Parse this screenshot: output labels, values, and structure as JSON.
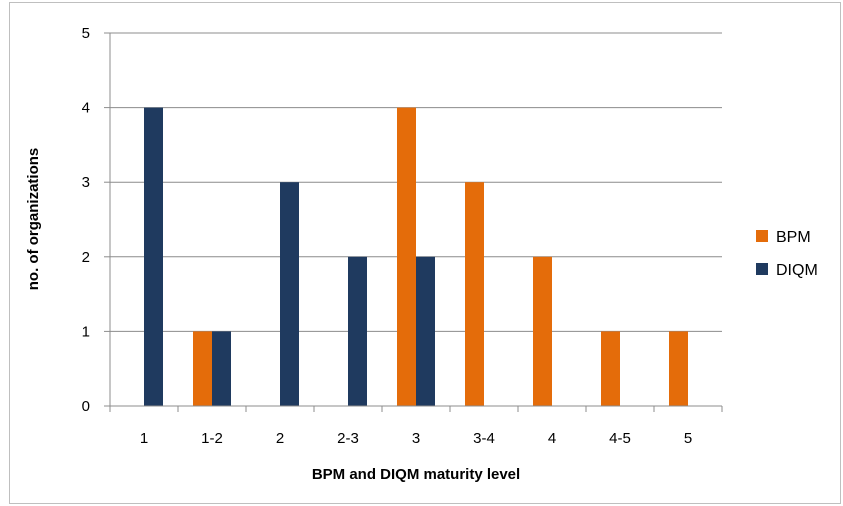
{
  "chart_data": {
    "type": "bar",
    "title": "",
    "xlabel": "BPM and DIQM maturity level",
    "ylabel": "no. of organizations",
    "categories": [
      "1",
      "1-2",
      "2",
      "2-3",
      "3",
      "3-4",
      "4",
      "4-5",
      "5"
    ],
    "series": [
      {
        "name": "BPM",
        "color": "#e46c0a",
        "values": [
          0,
          1,
          0,
          0,
          4,
          3,
          2,
          1,
          1
        ]
      },
      {
        "name": "DIQM",
        "color": "#1f3a5f",
        "values": [
          4,
          1,
          3,
          2,
          2,
          0,
          0,
          0,
          0
        ]
      }
    ],
    "yticks": [
      "0",
      "1",
      "2",
      "3",
      "4",
      "5"
    ],
    "ylim": [
      0,
      5
    ],
    "grid": true,
    "legend_position": "right"
  }
}
